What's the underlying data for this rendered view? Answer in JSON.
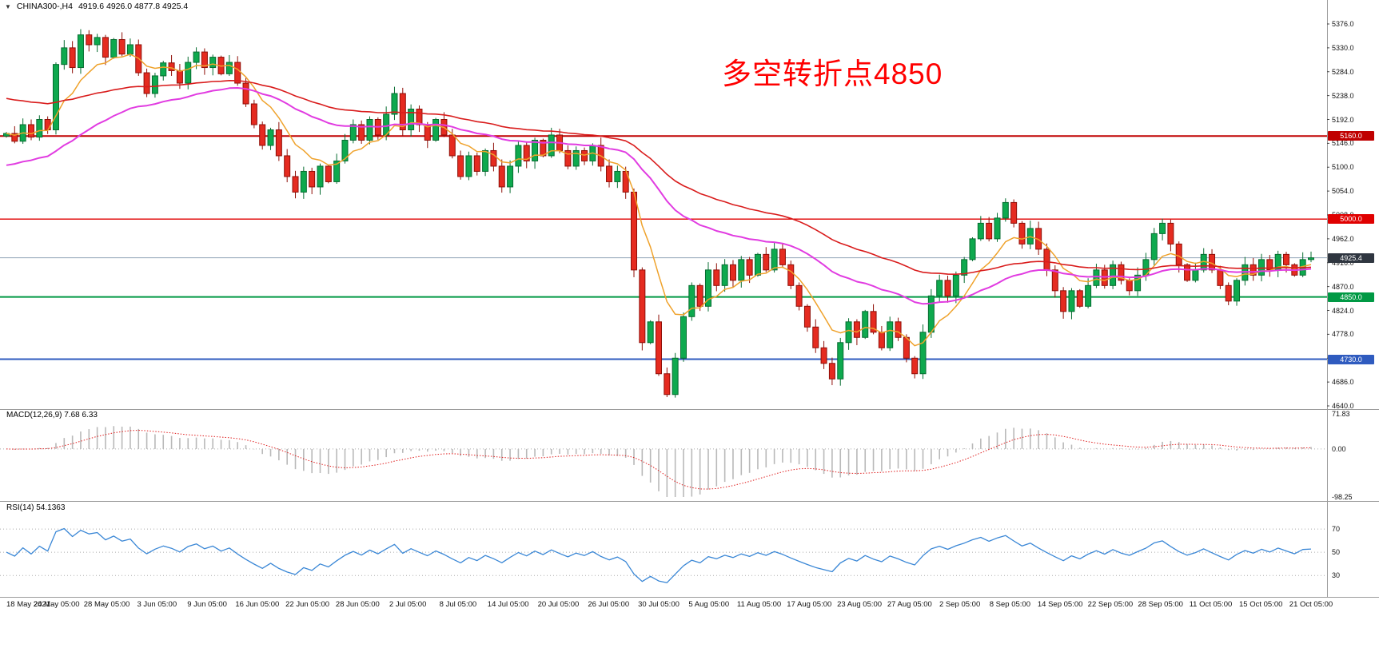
{
  "header": {
    "collapse_icon": "▼",
    "symbol": "CHINA300-,H4",
    "ohlc": "4919.6 4926.0 4877.8 4925.4"
  },
  "annotation": {
    "text": "多空转折点4850",
    "color": "#ff0000"
  },
  "chart_data": {
    "type": "candlestick",
    "symbol": "CHINA300-",
    "timeframe": "H4",
    "ohlc_display": {
      "open": "4919.6",
      "high": "4926.0",
      "low": "4877.8",
      "close": "4925.4"
    },
    "price_axis": {
      "max": 5376.0,
      "min": 4640.0,
      "ticks": [
        "5376.0",
        "5330.0",
        "5284.0",
        "5238.0",
        "5192.0",
        "5146.0",
        "5100.0",
        "5054.0",
        "5008.0",
        "4962.0",
        "4916.0",
        "4870.0",
        "4824.0",
        "4778.0",
        "4732.0",
        "4686.0",
        "4640.0"
      ]
    },
    "hlines": [
      {
        "price": 5160.0,
        "label": "5160.0",
        "color": "#c00000",
        "width": 2
      },
      {
        "price": 5000.0,
        "label": "5000.0",
        "color": "#e00000",
        "width": 1.4
      },
      {
        "price": 4850.0,
        "label": "4850.0",
        "color": "#009944",
        "width": 2
      },
      {
        "price": 4730.0,
        "label": "4730.0",
        "color": "#2f5bbf",
        "width": 2
      }
    ],
    "current_price": {
      "value": 4925.4,
      "label": "4925.4",
      "line_color": "#8fa3b5",
      "badge_color": "#2f3640"
    },
    "candles": {
      "first_open": 5160,
      "closes": [
        5165,
        5150,
        5182,
        5158,
        5192,
        5172,
        5298,
        5330,
        5292,
        5355,
        5336,
        5350,
        5312,
        5346,
        5318,
        5336,
        5282,
        5242,
        5276,
        5301,
        5286,
        5262,
        5302,
        5322,
        5292,
        5312,
        5280,
        5302,
        5262,
        5222,
        5182,
        5142,
        5172,
        5122,
        5082,
        5052,
        5092,
        5062,
        5102,
        5072,
        5112,
        5152,
        5182,
        5152,
        5192,
        5162,
        5202,
        5242,
        5172,
        5212,
        5182,
        5152,
        5192,
        5162,
        5122,
        5082,
        5122,
        5092,
        5132,
        5102,
        5062,
        5102,
        5142,
        5112,
        5152,
        5122,
        5162,
        5132,
        5102,
        5132,
        5112,
        5142,
        5102,
        5072,
        5092,
        5052,
        4902,
        4762,
        4802,
        4702,
        4662,
        4732,
        4812,
        4872,
        4832,
        4902,
        4872,
        4912,
        4882,
        4922,
        4892,
        4932,
        4902,
        4942,
        4912,
        4872,
        4832,
        4792,
        4752,
        4722,
        4692,
        4762,
        4802,
        4772,
        4822,
        4782,
        4752,
        4802,
        4772,
        4732,
        4702,
        4782,
        4852,
        4882,
        4852,
        4892,
        4922,
        4962,
        4992,
        4962,
        5002,
        5032,
        4992,
        4952,
        4982,
        4942,
        4902,
        4862,
        4822,
        4862,
        4832,
        4872,
        4902,
        4872,
        4912,
        4882,
        4862,
        4892,
        4922,
        4972,
        4992,
        4952,
        4912,
        4882,
        4902,
        4932,
        4902,
        4872,
        4842,
        4882,
        4912,
        4892,
        4922,
        4902,
        4932,
        4912,
        4892,
        4922,
        4925.4
      ]
    },
    "moving_averages": [
      {
        "name": "fast-ma",
        "period": 8,
        "seed": 5165,
        "color": "#efa22b",
        "width": 1.5
      },
      {
        "name": "mid-ma",
        "period": 34,
        "seed": 5100,
        "color": "#e13ce1",
        "width": 2
      },
      {
        "name": "slow-ma",
        "period": 55,
        "seed": 5235,
        "color": "#d91c1c",
        "width": 1.6
      }
    ],
    "time_axis": {
      "labels": [
        "18 May 2021",
        "24 May 05:00",
        "28 May 05:00",
        "3 Jun 05:00",
        "9 Jun 05:00",
        "16 Jun 05:00",
        "22 Jun 05:00",
        "28 Jun 05:00",
        "2 Jul 05:00",
        "8 Jul 05:00",
        "14 Jul 05:00",
        "20 Jul 05:00",
        "26 Jul 05:00",
        "30 Jul 05:00",
        "5 Aug 05:00",
        "11 Aug 05:00",
        "17 Aug 05:00",
        "23 Aug 05:00",
        "27 Aug 05:00",
        "2 Sep 05:00",
        "8 Sep 05:00",
        "14 Sep 05:00",
        "22 Sep 05:00",
        "28 Sep 05:00",
        "11 Oct 05:00",
        "15 Oct 05:00",
        "21 Oct 05:00"
      ]
    },
    "macd": {
      "label": "MACD(12,26,9) 7.68 6.33",
      "fast": 12,
      "slow": 26,
      "signal": 9,
      "value": 7.68,
      "signal_value": 6.33,
      "axis": [
        "71.83",
        "0.00",
        "-98.25"
      ],
      "vmax": 71.83,
      "vmin": -98.25
    },
    "rsi": {
      "label": "RSI(14) 54.1363",
      "period": 14,
      "value": 54.1363,
      "axis": [
        "70",
        "50",
        "30"
      ],
      "levels": [
        70,
        50,
        30
      ],
      "vmax": 90,
      "vmin": 15
    },
    "colors": {
      "up_fill": "#0ea94e",
      "up_stroke": "#076d31",
      "down_fill": "#e52b20",
      "down_stroke": "#8f0f08",
      "histogram": "#b9b9b9",
      "signal": "#e02020",
      "rsi_line": "#3a87d6",
      "level_line": "#ababab",
      "background": "#ffffff",
      "separator": "#9c9c9c"
    }
  }
}
